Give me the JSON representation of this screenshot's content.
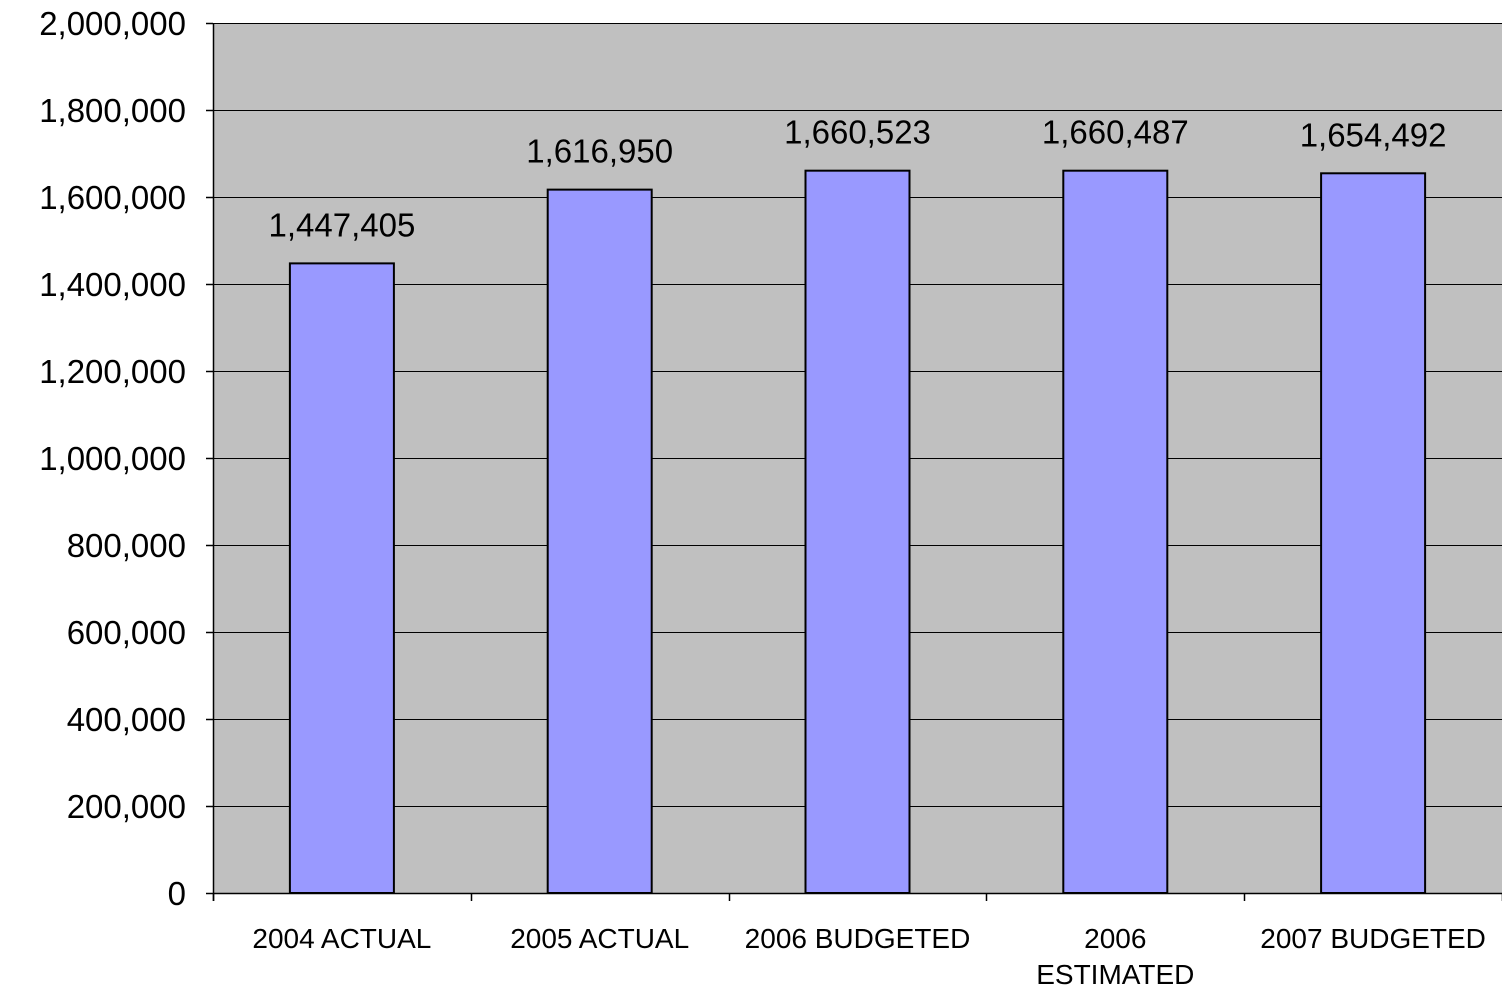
{
  "chart_data": {
    "type": "bar",
    "categories": [
      "2004 ACTUAL",
      "2005 ACTUAL",
      "2006 BUDGETED",
      "2006 ESTIMATED",
      "2007 BUDGETED"
    ],
    "category_lines": [
      [
        "2004 ACTUAL"
      ],
      [
        "2005 ACTUAL"
      ],
      [
        "2006 BUDGETED"
      ],
      [
        "2006",
        "ESTIMATED"
      ],
      [
        "2007 BUDGETED"
      ]
    ],
    "values": [
      1447405,
      1616950,
      1660523,
      1660487,
      1654492
    ],
    "value_labels": [
      "1,447,405",
      "1,616,950",
      "1,660,523",
      "1,660,487",
      "1,654,492"
    ],
    "title": "",
    "xlabel": "",
    "ylabel": "",
    "ylim": [
      0,
      2000000
    ],
    "yticks": [
      0,
      200000,
      400000,
      600000,
      800000,
      1000000,
      1200000,
      1400000,
      1600000,
      1800000,
      2000000
    ],
    "ytick_labels": [
      "0",
      "200,000",
      "400,000",
      "600,000",
      "800,000",
      "1,000,000",
      "1,200,000",
      "1,400,000",
      "1,600,000",
      "1,800,000",
      "2,000,000"
    ],
    "grid": true,
    "legend": "none",
    "colors": {
      "plot_background": "#c0c0c0",
      "bar_fill": "#9999ff",
      "bar_stroke": "#000000",
      "gridline": "#000000"
    }
  }
}
